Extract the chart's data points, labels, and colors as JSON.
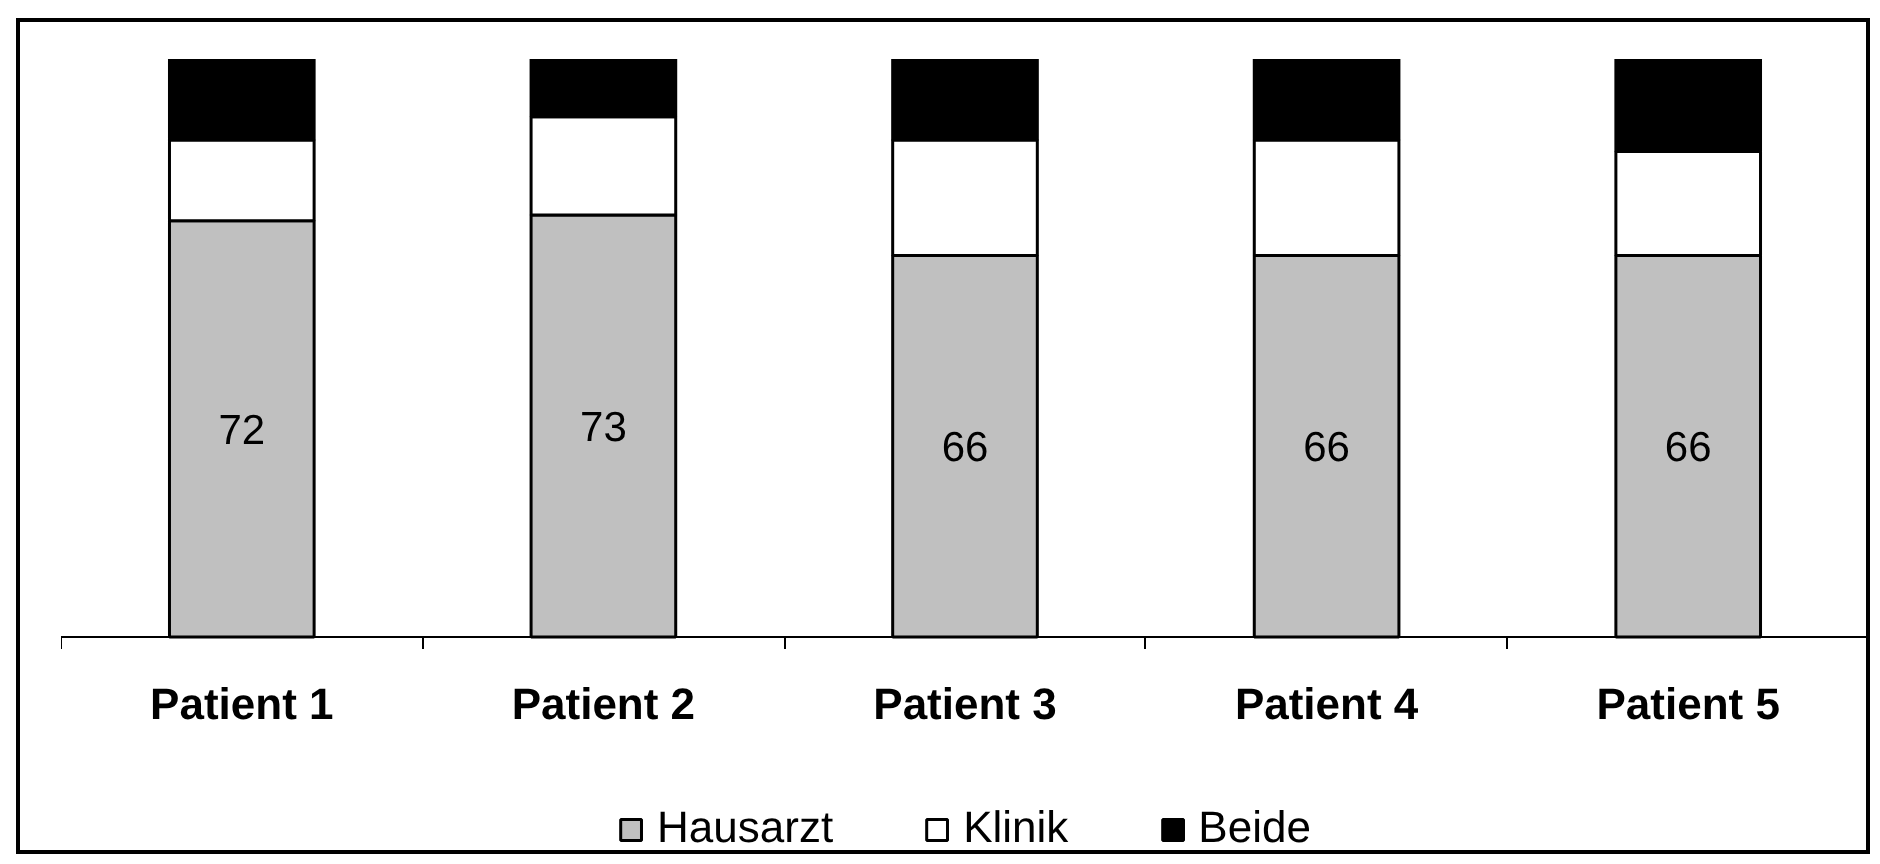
{
  "chart_data": {
    "type": "bar",
    "stacked": true,
    "categories": [
      "Patient 1",
      "Patient 2",
      "Patient 3",
      "Patient 4",
      "Patient 5"
    ],
    "ylim": [
      0,
      100
    ],
    "tick_labels": "x",
    "grid": false,
    "legend": "bottom",
    "series": [
      {
        "name": "Hausarzt",
        "color": "#c0c0c0",
        "values": [
          72,
          73,
          66,
          66,
          66
        ],
        "value_labels": [
          "72",
          "73",
          "66",
          "66",
          "66"
        ]
      },
      {
        "name": "Klinik",
        "color": "#ffffff",
        "values": [
          14,
          17,
          20,
          20,
          18
        ]
      },
      {
        "name": "Beide",
        "color": "#000000",
        "values": [
          14,
          10,
          14,
          14,
          16
        ]
      }
    ]
  }
}
